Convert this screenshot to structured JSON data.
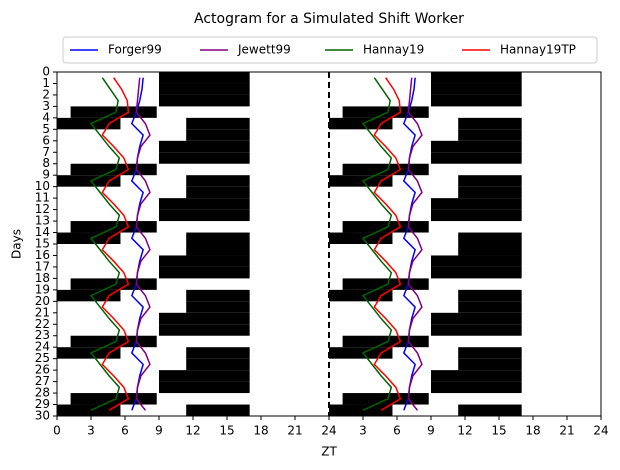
{
  "chart_data": {
    "type": "actogram",
    "title": "Actogram for a Simulated Shift Worker",
    "xlabel": "ZT",
    "ylabel": "Days",
    "xlim": [
      0,
      48
    ],
    "ylim": [
      30,
      0
    ],
    "xticks": [
      0,
      3,
      6,
      9,
      12,
      15,
      18,
      21,
      24,
      {
        "value": 27,
        "label": "3"
      },
      {
        "value": 30,
        "label": "6"
      },
      {
        "value": 33,
        "label": "9"
      },
      {
        "value": 36,
        "label": "12"
      },
      {
        "value": 39,
        "label": "15"
      },
      {
        "value": 42,
        "label": "18"
      },
      {
        "value": 45,
        "label": "21"
      },
      {
        "value": 48,
        "label": "24"
      }
    ],
    "yticks": [
      0,
      1,
      2,
      3,
      4,
      5,
      6,
      7,
      8,
      9,
      10,
      11,
      12,
      13,
      14,
      15,
      16,
      17,
      18,
      19,
      20,
      21,
      22,
      23,
      24,
      25,
      26,
      27,
      28,
      29,
      30
    ],
    "divider": 24,
    "dark_color": "#000000",
    "dark_periods": [
      [
        [
          9,
          17
        ]
      ],
      [
        [
          9,
          17
        ]
      ],
      [
        [
          9,
          17
        ]
      ],
      [
        [
          1.2,
          8.8
        ]
      ],
      [
        [
          0,
          5.6
        ],
        [
          11.4,
          17
        ]
      ],
      [
        [
          11.4,
          17
        ]
      ],
      [
        [
          9,
          17
        ]
      ],
      [
        [
          9,
          17
        ]
      ],
      [
        [
          1.2,
          8.8
        ]
      ],
      [
        [
          0,
          5.6
        ],
        [
          11.4,
          17
        ]
      ],
      [
        [
          11.4,
          17
        ]
      ],
      [
        [
          9,
          17
        ]
      ],
      [
        [
          9,
          17
        ]
      ],
      [
        [
          1.2,
          8.8
        ]
      ],
      [
        [
          0,
          5.6
        ],
        [
          11.4,
          17
        ]
      ],
      [
        [
          11.4,
          17
        ]
      ],
      [
        [
          9,
          17
        ]
      ],
      [
        [
          9,
          17
        ]
      ],
      [
        [
          1.2,
          8.8
        ]
      ],
      [
        [
          0,
          5.6
        ],
        [
          11.4,
          17
        ]
      ],
      [
        [
          11.4,
          17
        ]
      ],
      [
        [
          9,
          17
        ]
      ],
      [
        [
          9,
          17
        ]
      ],
      [
        [
          1.2,
          8.8
        ]
      ],
      [
        [
          0,
          5.6
        ],
        [
          11.4,
          17
        ]
      ],
      [
        [
          11.4,
          17
        ]
      ],
      [
        [
          9,
          17
        ]
      ],
      [
        [
          9,
          17
        ]
      ],
      [
        [
          1.2,
          8.8
        ]
      ],
      [
        [
          0,
          5.6
        ],
        [
          11.4,
          17
        ]
      ]
    ],
    "days": [
      0.5,
      1.5,
      2.5,
      3.5,
      4.5,
      5.5,
      6.5,
      7.5,
      8.5,
      9.5,
      10.5,
      11.5,
      12.5,
      13.5,
      14.5,
      15.5,
      16.5,
      17.5,
      18.5,
      19.5,
      20.5,
      21.5,
      22.5,
      23.5,
      24.5,
      25.5,
      26.5,
      27.5,
      28.5,
      29.5
    ],
    "series": [
      {
        "name": "Forger99",
        "color": "#0000ff",
        "values": [
          7.6,
          7.5,
          7.3,
          7.0,
          6.6,
          7.6,
          7.3,
          7.1,
          7.0,
          6.6,
          7.6,
          7.3,
          7.1,
          7.0,
          6.6,
          7.6,
          7.3,
          7.1,
          7.0,
          6.6,
          7.6,
          7.3,
          7.1,
          7.0,
          6.6,
          7.6,
          7.3,
          7.1,
          7.0,
          6.6
        ]
      },
      {
        "name": "Jewett99",
        "color": "#800080",
        "values": [
          7.3,
          7.2,
          7.1,
          7.0,
          7.8,
          8.2,
          7.4,
          7.1,
          7.0,
          7.8,
          8.2,
          7.4,
          7.1,
          7.0,
          7.8,
          8.2,
          7.4,
          7.1,
          7.0,
          7.8,
          8.2,
          7.4,
          7.1,
          7.0,
          7.8,
          8.2,
          7.4,
          7.1,
          7.0,
          7.8
        ]
      },
      {
        "name": "Hannay19",
        "color": "#006400",
        "values": [
          4.0,
          4.7,
          5.4,
          5.2,
          3.0,
          3.8,
          4.6,
          5.5,
          5.2,
          3.0,
          3.8,
          4.6,
          5.5,
          5.2,
          3.0,
          3.8,
          4.6,
          5.5,
          5.2,
          3.0,
          3.8,
          4.6,
          5.5,
          5.2,
          3.0,
          3.8,
          4.6,
          5.5,
          5.2,
          3.0
        ]
      },
      {
        "name": "Hannay19TP",
        "color": "#ff0000",
        "values": [
          5.0,
          5.7,
          6.2,
          6.3,
          4.6,
          4.0,
          5.0,
          5.9,
          6.3,
          4.6,
          4.0,
          5.0,
          5.9,
          6.3,
          4.6,
          4.0,
          5.0,
          5.9,
          6.3,
          4.6,
          4.0,
          5.0,
          5.9,
          6.3,
          4.6,
          4.0,
          5.0,
          5.9,
          6.3,
          4.6
        ]
      }
    ]
  }
}
